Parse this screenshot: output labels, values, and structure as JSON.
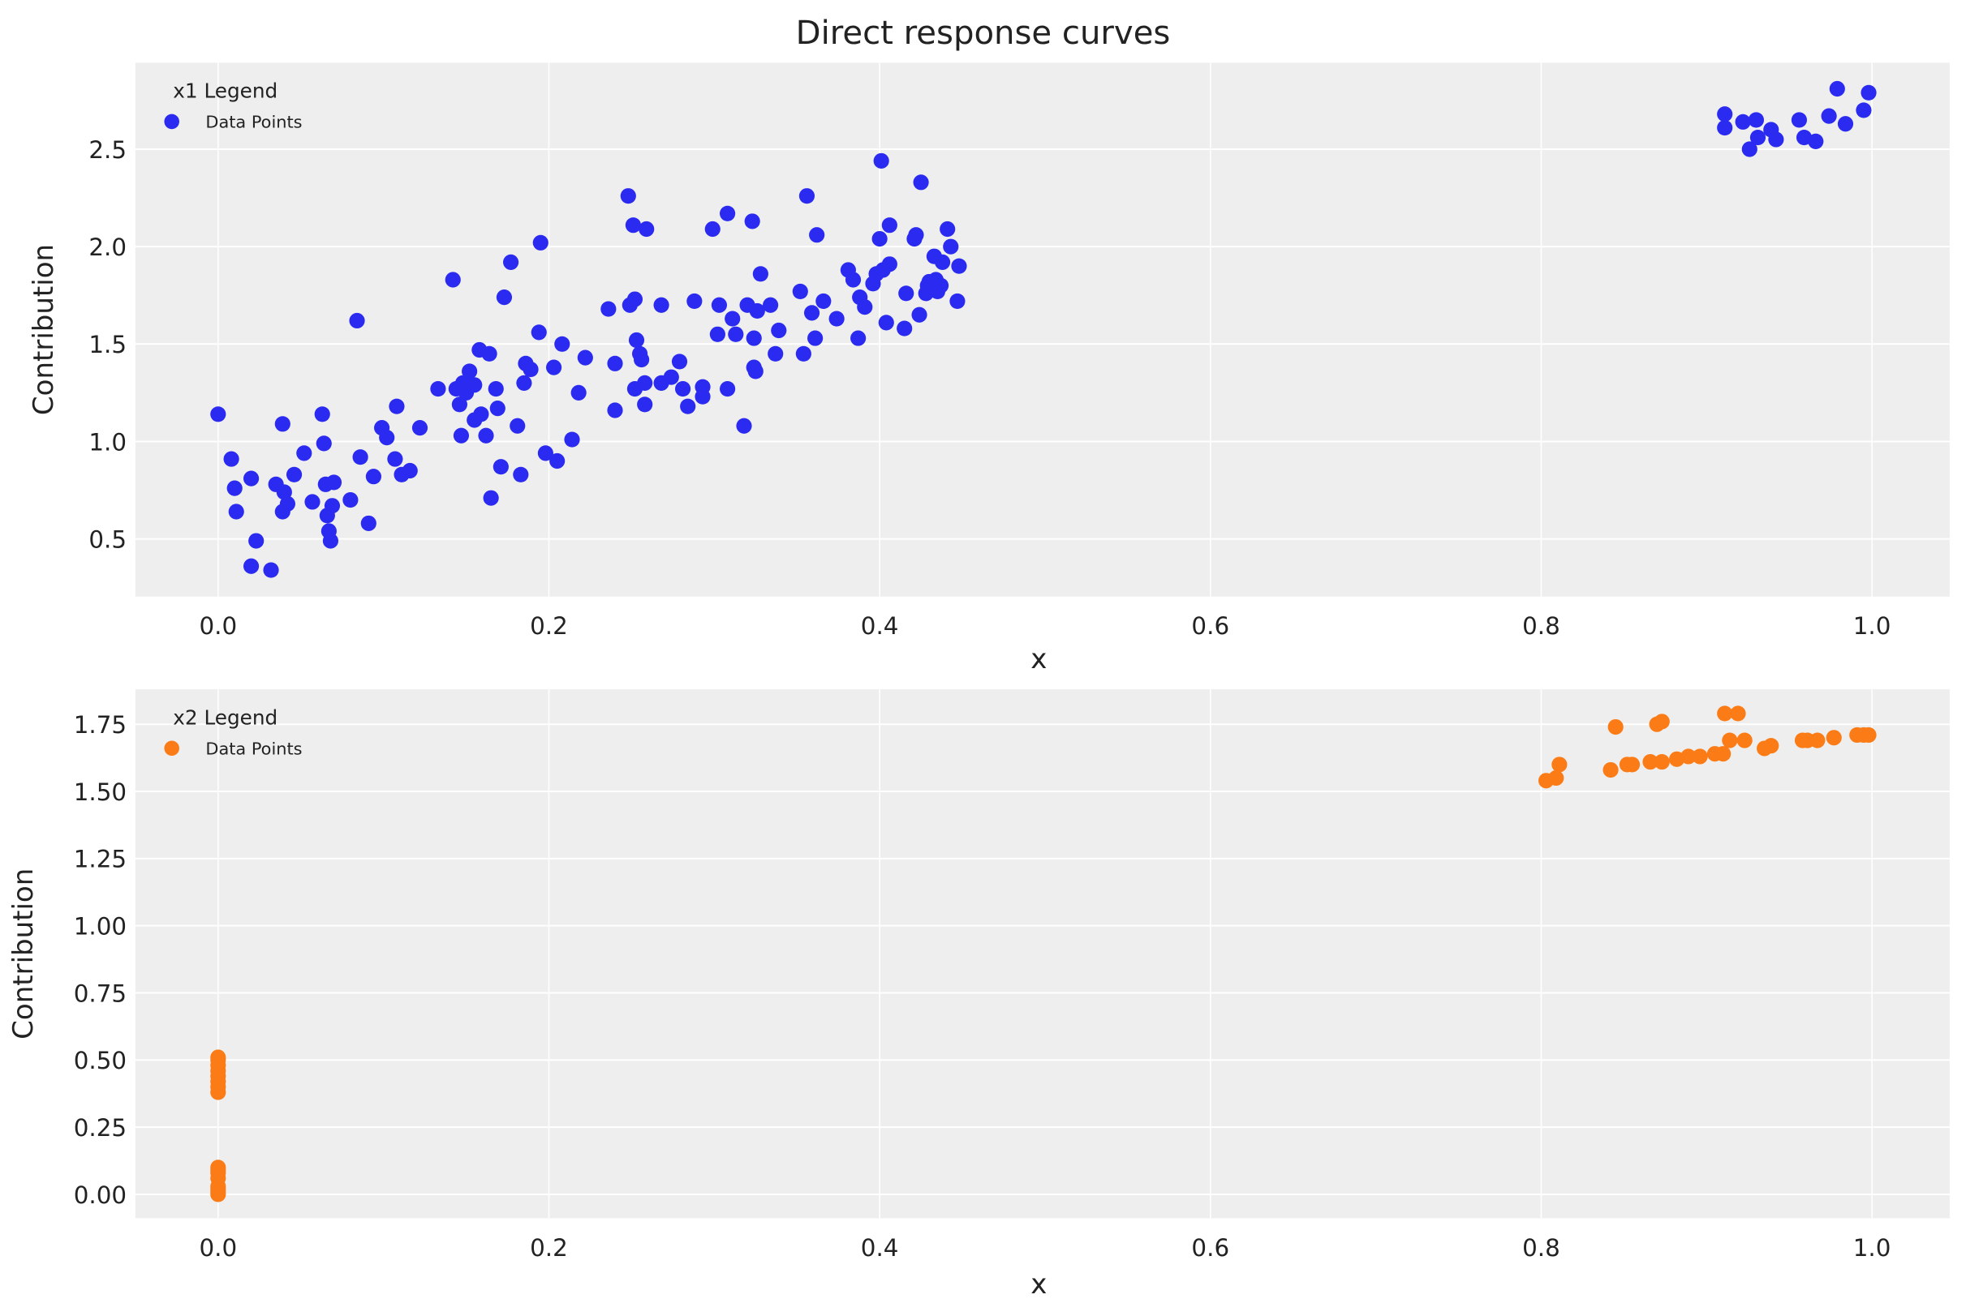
{
  "title": "Direct response curves",
  "colors": {
    "background": "#eeeeee",
    "grid": "#ffffff",
    "x1": "#2a2af0",
    "x2": "#fb7c16"
  },
  "chart_data": [
    {
      "type": "scatter",
      "xlabel": "x",
      "ylabel": "Contribution",
      "xlim": [
        -0.05,
        1.047
      ],
      "ylim": [
        0.204,
        2.944
      ],
      "xticks": [
        0.0,
        0.2,
        0.4,
        0.6,
        0.8,
        1.0
      ],
      "xtick_labels": [
        "0.0",
        "0.2",
        "0.4",
        "0.6",
        "0.8",
        "1.0"
      ],
      "yticks": [
        0.5,
        1.0,
        1.5,
        2.0,
        2.5
      ],
      "ytick_labels": [
        "0.5",
        "1.0",
        "1.5",
        "2.0",
        "2.5"
      ],
      "grid": true,
      "legend": {
        "title": "x1 Legend",
        "placement": "top-left",
        "entries": [
          "Data Points"
        ]
      },
      "series": [
        {
          "name": "Data Points",
          "color": "#2a2af0",
          "points": [
            [
              0.0,
              1.14
            ],
            [
              0.008,
              0.91
            ],
            [
              0.01,
              0.76
            ],
            [
              0.011,
              0.64
            ],
            [
              0.02,
              0.36
            ],
            [
              0.02,
              0.81
            ],
            [
              0.023,
              0.49
            ],
            [
              0.032,
              0.34
            ],
            [
              0.035,
              0.78
            ],
            [
              0.039,
              1.09
            ],
            [
              0.039,
              0.64
            ],
            [
              0.04,
              0.74
            ],
            [
              0.042,
              0.68
            ],
            [
              0.046,
              0.83
            ],
            [
              0.052,
              0.94
            ],
            [
              0.057,
              0.69
            ],
            [
              0.063,
              1.14
            ],
            [
              0.064,
              0.99
            ],
            [
              0.065,
              0.78
            ],
            [
              0.066,
              0.62
            ],
            [
              0.067,
              0.54
            ],
            [
              0.068,
              0.49
            ],
            [
              0.069,
              0.67
            ],
            [
              0.07,
              0.79
            ],
            [
              0.08,
              0.7
            ],
            [
              0.084,
              1.62
            ],
            [
              0.086,
              0.92
            ],
            [
              0.091,
              0.58
            ],
            [
              0.094,
              0.82
            ],
            [
              0.099,
              1.07
            ],
            [
              0.102,
              1.02
            ],
            [
              0.107,
              0.91
            ],
            [
              0.108,
              1.18
            ],
            [
              0.111,
              0.83
            ],
            [
              0.116,
              0.85
            ],
            [
              0.122,
              1.07
            ],
            [
              0.133,
              1.27
            ],
            [
              0.142,
              1.83
            ],
            [
              0.144,
              1.27
            ],
            [
              0.146,
              1.19
            ],
            [
              0.147,
              1.03
            ],
            [
              0.148,
              1.3
            ],
            [
              0.15,
              1.25
            ],
            [
              0.152,
              1.36
            ],
            [
              0.155,
              1.29
            ],
            [
              0.155,
              1.11
            ],
            [
              0.158,
              1.47
            ],
            [
              0.159,
              1.14
            ],
            [
              0.162,
              1.03
            ],
            [
              0.164,
              1.45
            ],
            [
              0.165,
              0.71
            ],
            [
              0.168,
              1.27
            ],
            [
              0.169,
              1.17
            ],
            [
              0.171,
              0.87
            ],
            [
              0.173,
              1.74
            ],
            [
              0.177,
              1.92
            ],
            [
              0.181,
              1.08
            ],
            [
              0.183,
              0.83
            ],
            [
              0.185,
              1.3
            ],
            [
              0.186,
              1.4
            ],
            [
              0.189,
              1.37
            ],
            [
              0.194,
              1.56
            ],
            [
              0.195,
              2.02
            ],
            [
              0.198,
              0.94
            ],
            [
              0.203,
              1.38
            ],
            [
              0.205,
              0.9
            ],
            [
              0.208,
              1.5
            ],
            [
              0.214,
              1.01
            ],
            [
              0.218,
              1.25
            ],
            [
              0.222,
              1.43
            ],
            [
              0.236,
              1.68
            ],
            [
              0.24,
              1.4
            ],
            [
              0.24,
              1.16
            ],
            [
              0.248,
              2.26
            ],
            [
              0.249,
              1.7
            ],
            [
              0.251,
              2.11
            ],
            [
              0.252,
              1.73
            ],
            [
              0.252,
              1.27
            ],
            [
              0.253,
              1.52
            ],
            [
              0.255,
              1.45
            ],
            [
              0.256,
              1.42
            ],
            [
              0.258,
              1.3
            ],
            [
              0.258,
              1.19
            ],
            [
              0.259,
              2.09
            ],
            [
              0.268,
              1.7
            ],
            [
              0.268,
              1.3
            ],
            [
              0.274,
              1.33
            ],
            [
              0.279,
              1.41
            ],
            [
              0.281,
              1.27
            ],
            [
              0.284,
              1.18
            ],
            [
              0.288,
              1.72
            ],
            [
              0.293,
              1.28
            ],
            [
              0.293,
              1.23
            ],
            [
              0.299,
              2.09
            ],
            [
              0.302,
              1.55
            ],
            [
              0.303,
              1.7
            ],
            [
              0.308,
              2.17
            ],
            [
              0.308,
              1.27
            ],
            [
              0.311,
              1.63
            ],
            [
              0.313,
              1.55
            ],
            [
              0.318,
              1.08
            ],
            [
              0.32,
              1.7
            ],
            [
              0.323,
              2.13
            ],
            [
              0.324,
              1.53
            ],
            [
              0.324,
              1.38
            ],
            [
              0.325,
              1.36
            ],
            [
              0.326,
              1.67
            ],
            [
              0.328,
              1.86
            ],
            [
              0.334,
              1.7
            ],
            [
              0.337,
              1.45
            ],
            [
              0.339,
              1.57
            ],
            [
              0.352,
              1.77
            ],
            [
              0.354,
              1.45
            ],
            [
              0.356,
              2.26
            ],
            [
              0.359,
              1.66
            ],
            [
              0.361,
              1.53
            ],
            [
              0.362,
              2.06
            ],
            [
              0.366,
              1.72
            ],
            [
              0.374,
              1.63
            ],
            [
              0.381,
              1.88
            ],
            [
              0.384,
              1.83
            ],
            [
              0.387,
              1.53
            ],
            [
              0.388,
              1.74
            ],
            [
              0.391,
              1.69
            ],
            [
              0.396,
              1.81
            ],
            [
              0.398,
              1.86
            ],
            [
              0.4,
              2.04
            ],
            [
              0.401,
              2.44
            ],
            [
              0.402,
              1.88
            ],
            [
              0.404,
              1.61
            ],
            [
              0.406,
              2.11
            ],
            [
              0.406,
              1.91
            ],
            [
              0.415,
              1.58
            ],
            [
              0.416,
              1.76
            ],
            [
              0.421,
              2.04
            ],
            [
              0.422,
              2.06
            ],
            [
              0.424,
              1.65
            ],
            [
              0.425,
              2.33
            ],
            [
              0.428,
              1.76
            ],
            [
              0.429,
              1.8
            ],
            [
              0.43,
              1.82
            ],
            [
              0.433,
              1.95
            ],
            [
              0.434,
              1.83
            ],
            [
              0.435,
              1.77
            ],
            [
              0.437,
              1.8
            ],
            [
              0.438,
              1.92
            ],
            [
              0.441,
              2.09
            ],
            [
              0.443,
              2.0
            ],
            [
              0.448,
              1.9
            ],
            [
              0.447,
              1.72
            ],
            [
              0.911,
              2.68
            ],
            [
              0.911,
              2.61
            ],
            [
              0.922,
              2.64
            ],
            [
              0.926,
              2.5
            ],
            [
              0.93,
              2.65
            ],
            [
              0.931,
              2.56
            ],
            [
              0.939,
              2.6
            ],
            [
              0.942,
              2.55
            ],
            [
              0.956,
              2.65
            ],
            [
              0.959,
              2.56
            ],
            [
              0.966,
              2.54
            ],
            [
              0.974,
              2.67
            ],
            [
              0.979,
              2.81
            ],
            [
              0.984,
              2.63
            ],
            [
              0.995,
              2.7
            ],
            [
              0.998,
              2.79
            ]
          ]
        }
      ]
    },
    {
      "type": "scatter",
      "xlabel": "x",
      "ylabel": "Contribution",
      "xlim": [
        -0.05,
        1.047
      ],
      "ylim": [
        -0.089,
        1.88
      ],
      "xticks": [
        0.0,
        0.2,
        0.4,
        0.6,
        0.8,
        1.0
      ],
      "xtick_labels": [
        "0.0",
        "0.2",
        "0.4",
        "0.6",
        "0.8",
        "1.0"
      ],
      "yticks": [
        0.0,
        0.25,
        0.5,
        0.75,
        1.0,
        1.25,
        1.5,
        1.75
      ],
      "ytick_labels": [
        "0.00",
        "0.25",
        "0.50",
        "0.75",
        "1.00",
        "1.25",
        "1.50",
        "1.75"
      ],
      "grid": true,
      "legend": {
        "title": "x2 Legend",
        "placement": "top-left",
        "entries": [
          "Data Points"
        ]
      },
      "series": [
        {
          "name": "Data Points",
          "color": "#fb7c16",
          "points": [
            [
              0,
              0.0
            ],
            [
              0,
              0.01
            ],
            [
              0,
              0.02
            ],
            [
              0,
              0.03
            ],
            [
              0,
              0.06
            ],
            [
              0,
              0.08
            ],
            [
              0,
              0.09
            ],
            [
              0,
              0.1
            ],
            [
              0,
              0.38
            ],
            [
              0,
              0.4
            ],
            [
              0,
              0.42
            ],
            [
              0,
              0.44
            ],
            [
              0,
              0.46
            ],
            [
              0,
              0.48
            ],
            [
              0,
              0.5
            ],
            [
              0,
              0.51
            ],
            [
              0.803,
              1.54
            ],
            [
              0.809,
              1.55
            ],
            [
              0.811,
              1.6
            ],
            [
              0.842,
              1.58
            ],
            [
              0.845,
              1.74
            ],
            [
              0.852,
              1.6
            ],
            [
              0.855,
              1.6
            ],
            [
              0.866,
              1.61
            ],
            [
              0.87,
              1.75
            ],
            [
              0.873,
              1.76
            ],
            [
              0.873,
              1.61
            ],
            [
              0.882,
              1.62
            ],
            [
              0.889,
              1.63
            ],
            [
              0.896,
              1.63
            ],
            [
              0.905,
              1.64
            ],
            [
              0.91,
              1.64
            ],
            [
              0.911,
              1.79
            ],
            [
              0.914,
              1.69
            ],
            [
              0.919,
              1.79
            ],
            [
              0.923,
              1.69
            ],
            [
              0.935,
              1.66
            ],
            [
              0.939,
              1.67
            ],
            [
              0.958,
              1.69
            ],
            [
              0.961,
              1.69
            ],
            [
              0.967,
              1.69
            ],
            [
              0.977,
              1.7
            ],
            [
              0.991,
              1.71
            ],
            [
              0.995,
              1.71
            ],
            [
              0.998,
              1.71
            ]
          ]
        }
      ]
    }
  ]
}
